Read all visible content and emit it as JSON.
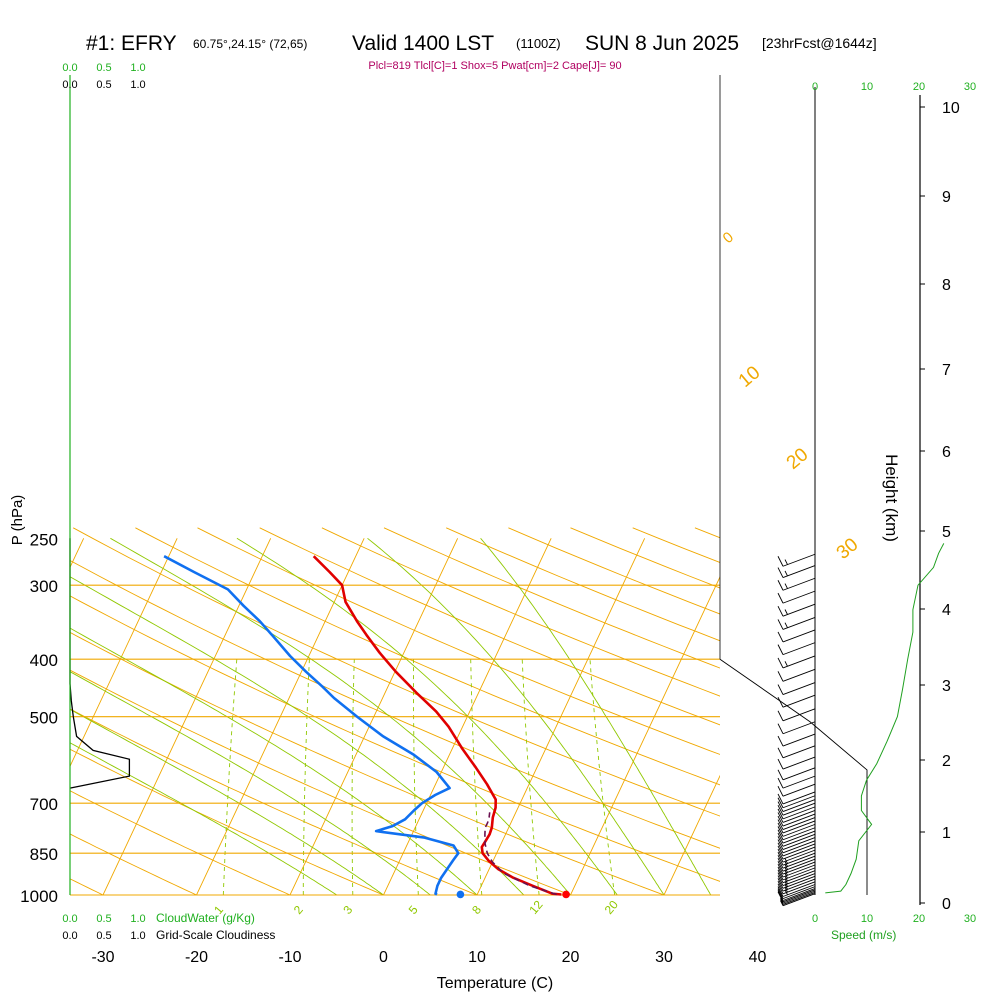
{
  "header": {
    "station": "#1: EFRY",
    "coords": "60.75°,24.15° (72,65)",
    "valid": "Valid 1400 LST",
    "zulu": "(1100Z)",
    "date": "SUN 8 Jun 2025",
    "forecast": "[23hrFcst@1644z]",
    "indices": "Plcl=819 Tlcl[C]=1 Shox=5 Pwat[cm]=2 Cape[J]= 90"
  },
  "colors": {
    "temperature": "#e00000",
    "dewpoint": "#1070f0",
    "parcel": "#6b1050",
    "isotherm": "#f0a800",
    "dry_adiabat": "#f0a800",
    "moist_adiabat": "#90c800",
    "mixing_ratio": "#90c800",
    "cloudwater": "#20b020",
    "speed": "#20a020",
    "index_text": "#b00060"
  },
  "chart_data": {
    "type": "line",
    "title": "#1: EFRY",
    "xlabel": "Temperature (C)",
    "ylabel": "P (hPa)",
    "xlim": [
      -34,
      36
    ],
    "ylim": [
      1000,
      250
    ],
    "y_scale": "log",
    "x_ticks": [
      "-30",
      "-20",
      "-10",
      "0",
      "10",
      "20",
      "30",
      "40"
    ],
    "y_ticks": [
      "250",
      "300",
      "400",
      "500",
      "700",
      "850",
      "1000"
    ],
    "isobars": [
      300,
      400,
      500,
      700,
      850,
      1000
    ],
    "isotherm_labels": [
      "10",
      "0",
      "-10",
      "-20",
      "-30"
    ],
    "dry_adiabat_labels": [
      "0",
      "10",
      "20",
      "30"
    ],
    "mixing_ratio_labels": [
      "1",
      "2",
      "3",
      "5",
      "8",
      "12",
      "20"
    ],
    "series": [
      {
        "name": "Temperature",
        "points": [
          [
            19.0,
            998
          ],
          [
            18.0,
            995
          ],
          [
            15.5,
            965
          ],
          [
            13.0,
            935
          ],
          [
            11.0,
            905
          ],
          [
            9.5,
            875
          ],
          [
            8.5,
            850
          ],
          [
            8.1,
            830
          ],
          [
            8.2,
            810
          ],
          [
            8.3,
            790
          ],
          [
            8.2,
            770
          ],
          [
            7.8,
            740
          ],
          [
            7.6,
            712
          ],
          [
            7.2,
            690
          ],
          [
            5.5,
            650
          ],
          [
            3.5,
            610
          ],
          [
            1.0,
            565
          ],
          [
            -1.5,
            520
          ],
          [
            -3.6,
            490
          ],
          [
            -6.7,
            455
          ],
          [
            -9.9,
            420
          ],
          [
            -12.6,
            390
          ],
          [
            -14.8,
            365
          ],
          [
            -16.6,
            345
          ],
          [
            -18.8,
            320
          ],
          [
            -20.0,
            300
          ],
          [
            -22.0,
            285
          ],
          [
            -24.5,
            268
          ]
        ]
      },
      {
        "name": "Dewpoint",
        "points": [
          [
            5.7,
            998
          ],
          [
            5.5,
            995
          ],
          [
            5.3,
            965
          ],
          [
            5.3,
            935
          ],
          [
            5.5,
            905
          ],
          [
            5.7,
            875
          ],
          [
            5.9,
            850
          ],
          [
            5.0,
            825
          ],
          [
            1.5,
            800
          ],
          [
            -4.0,
            780
          ],
          [
            -2.5,
            765
          ],
          [
            -1.5,
            745
          ],
          [
            -1.0,
            720
          ],
          [
            -0.5,
            700
          ],
          [
            0.5,
            678
          ],
          [
            1.7,
            660
          ],
          [
            -0.5,
            620
          ],
          [
            -3.8,
            580
          ],
          [
            -8.0,
            540
          ],
          [
            -11.8,
            500
          ],
          [
            -15.2,
            465
          ],
          [
            -17.0,
            445
          ],
          [
            -19.5,
            420
          ],
          [
            -22.0,
            395
          ],
          [
            -24.9,
            365
          ],
          [
            -27.0,
            345
          ],
          [
            -29.5,
            325
          ],
          [
            -32.0,
            305
          ],
          [
            -36.5,
            285
          ],
          [
            -40.5,
            268
          ]
        ]
      },
      {
        "name": "Parcel",
        "points": [
          [
            18.5,
            998
          ],
          [
            15.2,
            965
          ],
          [
            11.8,
            920
          ],
          [
            10.0,
            880
          ],
          [
            9.0,
            850
          ],
          [
            8.3,
            820
          ],
          [
            7.8,
            790
          ],
          [
            7.5,
            770
          ],
          [
            7.5,
            755
          ],
          [
            7.4,
            740
          ],
          [
            7.2,
            725
          ]
        ]
      }
    ],
    "surface_markers": [
      {
        "name": "surface-temperature",
        "t": 19.5,
        "p": 998
      },
      {
        "name": "surface-dewpoint",
        "t": 8.2,
        "p": 998
      }
    ],
    "wind_barbs": [
      {
        "p": 995,
        "speed": 3
      },
      {
        "p": 990,
        "speed": 5
      },
      {
        "p": 985,
        "speed": 7
      },
      {
        "p": 980,
        "speed": 9
      },
      {
        "p": 975,
        "speed": 11
      },
      {
        "p": 968,
        "speed": 12
      },
      {
        "p": 960,
        "speed": 13
      },
      {
        "p": 950,
        "speed": 14
      },
      {
        "p": 940,
        "speed": 14
      },
      {
        "p": 930,
        "speed": 14
      },
      {
        "p": 920,
        "speed": 14
      },
      {
        "p": 910,
        "speed": 14
      },
      {
        "p": 900,
        "speed": 13
      },
      {
        "p": 890,
        "speed": 13
      },
      {
        "p": 880,
        "speed": 13
      },
      {
        "p": 870,
        "speed": 13
      },
      {
        "p": 860,
        "speed": 13
      },
      {
        "p": 850,
        "speed": 13
      },
      {
        "p": 840,
        "speed": 12
      },
      {
        "p": 830,
        "speed": 12
      },
      {
        "p": 820,
        "speed": 12
      },
      {
        "p": 810,
        "speed": 12
      },
      {
        "p": 800,
        "speed": 12
      },
      {
        "p": 790,
        "speed": 11
      },
      {
        "p": 780,
        "speed": 11
      },
      {
        "p": 770,
        "speed": 11
      },
      {
        "p": 760,
        "speed": 11
      },
      {
        "p": 750,
        "speed": 10
      },
      {
        "p": 740,
        "speed": 10
      },
      {
        "p": 730,
        "speed": 10
      },
      {
        "p": 720,
        "speed": 10
      },
      {
        "p": 710,
        "speed": 10
      },
      {
        "p": 700,
        "speed": 10
      },
      {
        "p": 690,
        "speed": 10
      },
      {
        "p": 680,
        "speed": 10
      },
      {
        "p": 670,
        "speed": 10
      },
      {
        "p": 650,
        "speed": 10
      },
      {
        "p": 630,
        "speed": 10
      },
      {
        "p": 610,
        "speed": 10
      },
      {
        "p": 585,
        "speed": 10
      },
      {
        "p": 560,
        "speed": 10
      },
      {
        "p": 535,
        "speed": 10
      },
      {
        "p": 510,
        "speed": 10
      },
      {
        "p": 485,
        "speed": 10
      },
      {
        "p": 460,
        "speed": 10
      },
      {
        "p": 438,
        "speed": 10
      },
      {
        "p": 416,
        "speed": 10
      },
      {
        "p": 395,
        "speed": 15
      },
      {
        "p": 375,
        "speed": 10
      },
      {
        "p": 357,
        "speed": 10
      },
      {
        "p": 340,
        "speed": 15
      },
      {
        "p": 323,
        "speed": 15
      },
      {
        "p": 307,
        "speed": 10
      },
      {
        "p": 292,
        "speed": 15
      },
      {
        "p": 278,
        "speed": 15
      },
      {
        "p": 266,
        "speed": 15
      }
    ],
    "cloudwater_axis": {
      "ticks_top": [
        "0.0",
        "0.5",
        "1.0"
      ],
      "ticks_bottom": [
        "0.0",
        "0.5",
        "1.0"
      ],
      "label": "CloudWater (g/Kg)",
      "cloudiness_label": "Grid-Scale Cloudiness",
      "cloudiness_profile": [
        [
          0.0,
          250
        ],
        [
          0.0,
          440
        ],
        [
          0.02,
          470
        ],
        [
          0.05,
          500
        ],
        [
          0.1,
          540
        ],
        [
          0.35,
          570
        ],
        [
          0.9,
          590
        ],
        [
          0.9,
          630
        ],
        [
          0.0,
          660
        ]
      ]
    },
    "speed_axis": {
      "label": "Speed (m/s)",
      "ticks": [
        "0",
        "10",
        "20",
        "30"
      ],
      "profile": [
        [
          2,
          992
        ],
        [
          5,
          985
        ],
        [
          6,
          960
        ],
        [
          7,
          920
        ],
        [
          8,
          870
        ],
        [
          8.5,
          810
        ],
        [
          11,
          760
        ],
        [
          9,
          720
        ],
        [
          9,
          680
        ],
        [
          10,
          640
        ],
        [
          12,
          600
        ],
        [
          14,
          550
        ],
        [
          16,
          500
        ],
        [
          17,
          450
        ],
        [
          18,
          400
        ],
        [
          19,
          360
        ],
        [
          19,
          330
        ],
        [
          20,
          300
        ],
        [
          23,
          280
        ],
        [
          24,
          265
        ],
        [
          25,
          255
        ]
      ]
    },
    "height_axis": {
      "label": "Height (km)",
      "ticks": [
        "0",
        "1",
        "2",
        "3",
        "4",
        "5",
        "6",
        "7",
        "8",
        "9",
        "10"
      ]
    }
  }
}
